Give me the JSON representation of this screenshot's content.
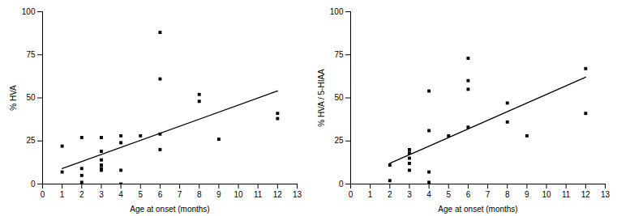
{
  "chart_data": [
    {
      "type": "scatter",
      "xlabel": "Age at onset (months)",
      "ylabel": "% HVA",
      "x": [
        1,
        1,
        2,
        2,
        2,
        2,
        3,
        3,
        3,
        3,
        3,
        3,
        4,
        4,
        4,
        4,
        5,
        6,
        6,
        6,
        6,
        8,
        8,
        9,
        12,
        12
      ],
      "values": [
        22,
        7,
        27,
        9,
        5,
        1,
        27,
        19,
        14,
        11,
        9,
        8,
        28,
        24,
        8,
        0,
        28,
        88,
        61,
        29,
        20,
        52,
        48,
        26,
        41,
        38
      ],
      "fit": {
        "x": [
          1,
          12
        ],
        "values": [
          9,
          54
        ]
      },
      "color": "#000000",
      "marker": "square",
      "xlim": [
        0,
        13
      ],
      "xticks": [
        0,
        1,
        2,
        3,
        4,
        5,
        6,
        7,
        8,
        9,
        10,
        11,
        12,
        13
      ],
      "ylim": [
        0,
        100
      ],
      "yticks": [
        0,
        25,
        50,
        75,
        100
      ],
      "grid": false
    },
    {
      "type": "scatter",
      "xlabel": "Age at onset (months)",
      "ylabel": "% HVA / 5-HIAA",
      "x": [
        2,
        2,
        3,
        3,
        3,
        3,
        3,
        4,
        4,
        4,
        4,
        5,
        6,
        6,
        6,
        6,
        8,
        8,
        9,
        12,
        12
      ],
      "values": [
        11,
        2,
        20,
        18,
        15,
        12,
        8,
        54,
        31,
        7,
        1,
        28,
        73,
        60,
        55,
        33,
        47,
        36,
        28,
        67,
        41
      ],
      "fit": {
        "x": [
          2,
          12
        ],
        "values": [
          12,
          62
        ]
      },
      "color": "#000000",
      "marker": "square",
      "xlim": [
        0,
        13
      ],
      "xticks": [
        0,
        1,
        2,
        3,
        4,
        5,
        6,
        7,
        8,
        9,
        10,
        11,
        12,
        13
      ],
      "ylim": [
        0,
        100
      ],
      "yticks": [
        0,
        25,
        50,
        75,
        100
      ],
      "grid": false
    }
  ]
}
